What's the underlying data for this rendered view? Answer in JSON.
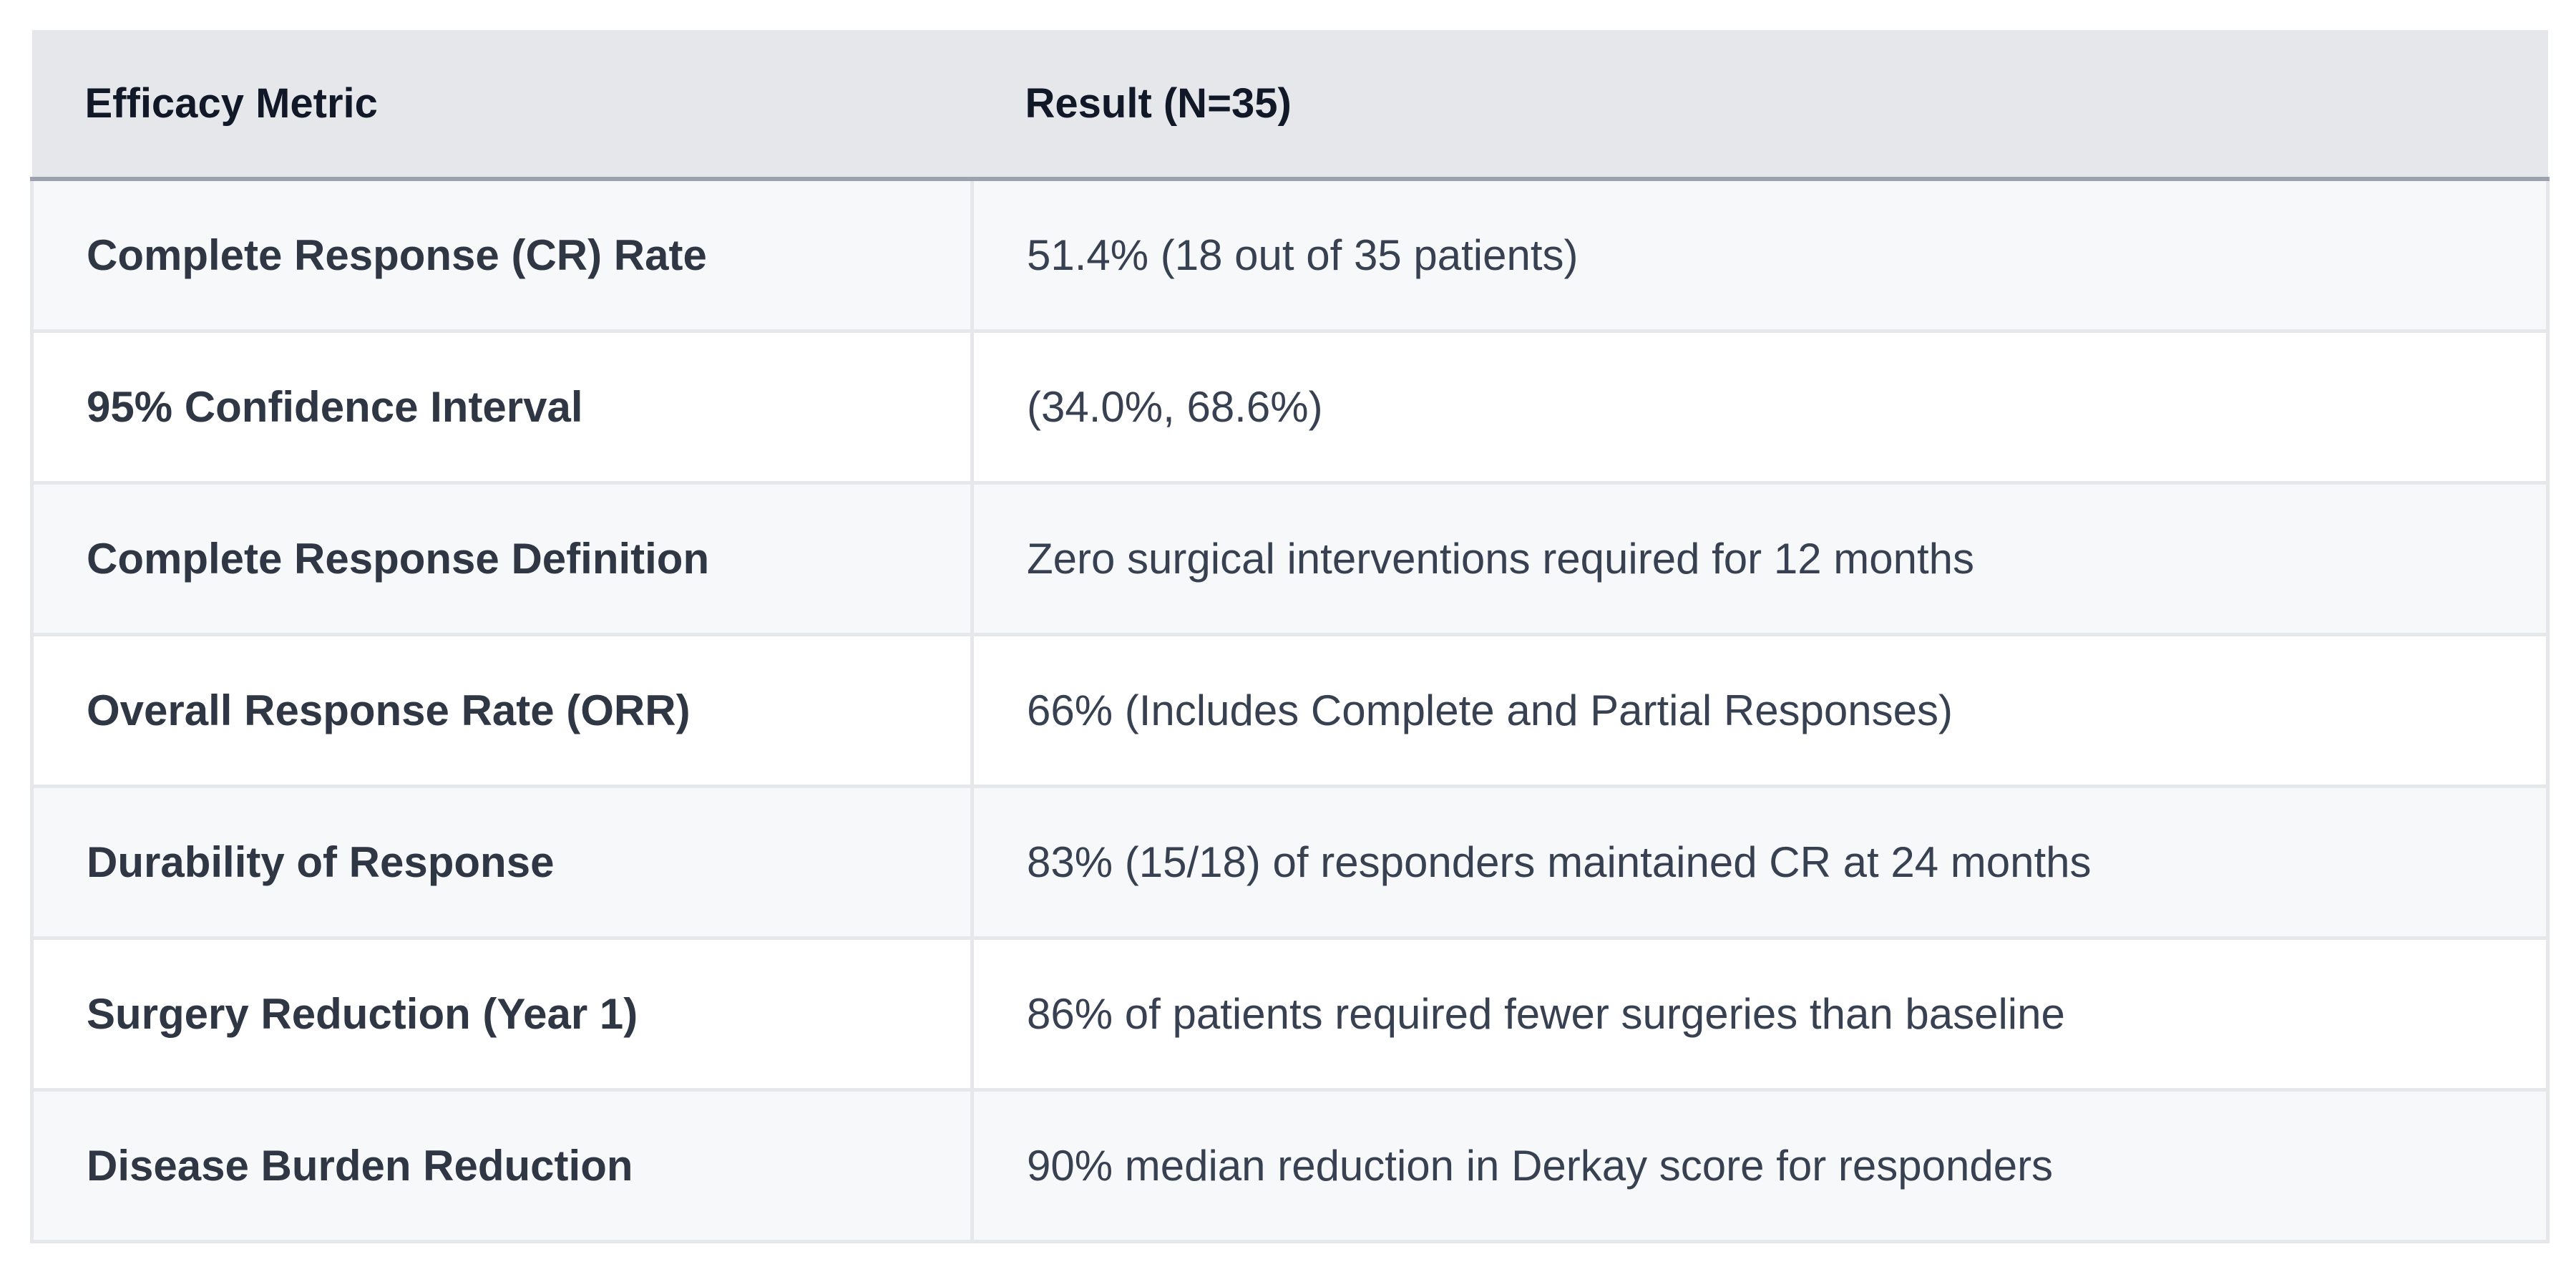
{
  "table": {
    "headers": [
      "Efficacy Metric",
      "Result (N=35)"
    ],
    "rows": [
      [
        "Complete Response (CR) Rate",
        "51.4% (18 out of 35 patients)"
      ],
      [
        "95% Confidence Interval",
        "(34.0%, 68.6%)"
      ],
      [
        "Complete Response Definition",
        "Zero surgical interventions required for 12 months"
      ],
      [
        "Overall Response Rate (ORR)",
        "66% (Includes Complete and Partial Responses)"
      ],
      [
        "Durability of Response",
        "83% (15/18) of responders maintained CR at 24 months"
      ],
      [
        "Surgery Reduction (Year 1)",
        "86% of patients required fewer surgeries than baseline"
      ],
      [
        "Disease Burden Reduction",
        "90% median reduction in Derkay score for responders"
      ]
    ]
  }
}
